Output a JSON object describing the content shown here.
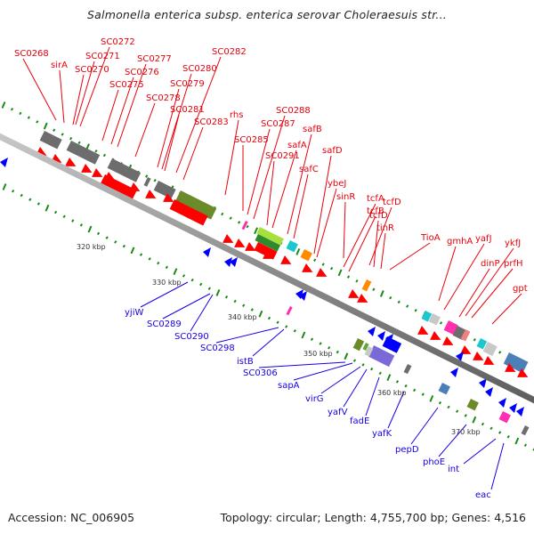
{
  "title": "Salmonella enterica subsp. enterica serovar Choleraesuis str...",
  "footer": {
    "accession": "Accession: NC_006905",
    "summary": "Topology: circular; Length: 4,755,700 bp; Genes: 4,516"
  },
  "colors": {
    "forward_label": "#e8000b",
    "reverse_label": "#1500e6",
    "backbone": "#8c8c8c",
    "tick": "#1a8a1a",
    "cds_forward": "#ff0000",
    "cds_reverse": "#0000ff"
  },
  "kbp_ticks": [
    "320 kbp",
    "330 kbp",
    "340 kbp",
    "350 kbp",
    "360 kbp",
    "370 kbp"
  ],
  "forward_genes": [
    {
      "name": "SC0268"
    },
    {
      "name": "sirA"
    },
    {
      "name": "SC0270"
    },
    {
      "name": "SC0271"
    },
    {
      "name": "SC0272"
    },
    {
      "name": "SC0275"
    },
    {
      "name": "SC0276"
    },
    {
      "name": "SC0277"
    },
    {
      "name": "SC0278"
    },
    {
      "name": "SC0279"
    },
    {
      "name": "SC0280"
    },
    {
      "name": "SC0281"
    },
    {
      "name": "SC0282"
    },
    {
      "name": "SC0283"
    },
    {
      "name": "rhs"
    },
    {
      "name": "SC0285"
    },
    {
      "name": "SC0287"
    },
    {
      "name": "SC0288"
    },
    {
      "name": "SC0291"
    },
    {
      "name": "safA"
    },
    {
      "name": "safB"
    },
    {
      "name": "safC"
    },
    {
      "name": "safD"
    },
    {
      "name": "ybeJ"
    },
    {
      "name": "sinR"
    },
    {
      "name": "tcfA"
    },
    {
      "name": "tcfB"
    },
    {
      "name": "tcfD"
    },
    {
      "name": "tcfD"
    },
    {
      "name": "tinR"
    },
    {
      "name": "TioA"
    },
    {
      "name": "gmhA"
    },
    {
      "name": "yafJ"
    },
    {
      "name": "dinP"
    },
    {
      "name": "ykfJ"
    },
    {
      "name": "prfH"
    },
    {
      "name": "gpt"
    }
  ],
  "reverse_genes": [
    {
      "name": "yjiW"
    },
    {
      "name": "SC0289"
    },
    {
      "name": "SC0290"
    },
    {
      "name": "SC0298"
    },
    {
      "name": "istB"
    },
    {
      "name": "SC0306"
    },
    {
      "name": "sapA"
    },
    {
      "name": "virG"
    },
    {
      "name": "yafV"
    },
    {
      "name": "fadE"
    },
    {
      "name": "yafK"
    },
    {
      "name": "pepD"
    },
    {
      "name": "phoE"
    },
    {
      "name": "int"
    },
    {
      "name": "eac"
    }
  ]
}
